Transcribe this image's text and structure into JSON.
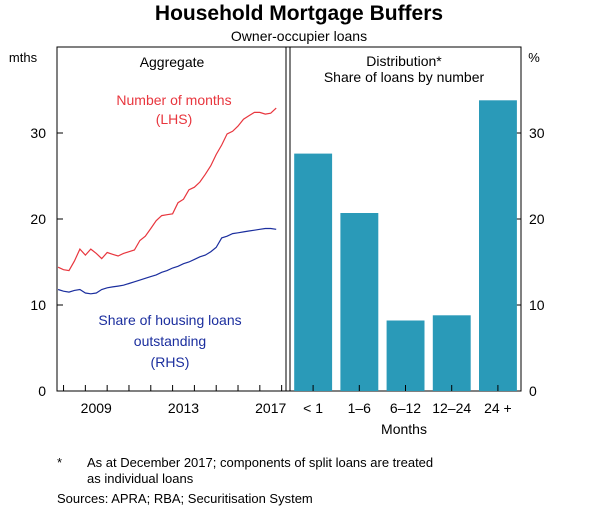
{
  "title": "Household Mortgage Buffers",
  "subtitle": "Owner-occupier loans",
  "chart_data": [
    {
      "type": "line",
      "panel_title": "Aggregate",
      "left_unit": "mths",
      "x_ticks": [
        "2009",
        "2013",
        "2017"
      ],
      "xlim": [
        2007.7,
        2018.2
      ],
      "ylim_left": [
        0,
        40
      ],
      "ylim_right": [
        0,
        40
      ],
      "y_ticks": [
        0,
        10,
        20,
        30
      ],
      "grid": false,
      "series": [
        {
          "name": "Number of months",
          "label_lines": [
            "Number of months",
            "(LHS)"
          ],
          "axis": "left",
          "color": "#e8363e",
          "x": [
            2007.75,
            2008.0,
            2008.25,
            2008.5,
            2008.75,
            2009.0,
            2009.25,
            2009.5,
            2009.75,
            2010.0,
            2010.25,
            2010.5,
            2010.75,
            2011.0,
            2011.25,
            2011.5,
            2011.75,
            2012.0,
            2012.25,
            2012.5,
            2012.75,
            2013.0,
            2013.25,
            2013.5,
            2013.75,
            2014.0,
            2014.25,
            2014.5,
            2014.75,
            2015.0,
            2015.25,
            2015.5,
            2015.75,
            2016.0,
            2016.25,
            2016.5,
            2016.75,
            2017.0,
            2017.25,
            2017.5,
            2017.75
          ],
          "values": [
            14.4,
            14.1,
            14.0,
            15.1,
            16.5,
            15.8,
            16.5,
            16.0,
            15.4,
            16.1,
            15.9,
            15.7,
            16.0,
            16.2,
            16.4,
            17.5,
            18.0,
            18.9,
            19.8,
            20.4,
            20.5,
            20.6,
            21.9,
            22.3,
            23.4,
            23.7,
            24.3,
            25.2,
            26.2,
            27.5,
            28.6,
            29.9,
            30.2,
            30.8,
            31.6,
            32.0,
            32.4,
            32.4,
            32.2,
            32.3,
            32.9
          ]
        },
        {
          "name": "Share of housing loans outstanding",
          "label_lines": [
            "Share of housing loans",
            "outstanding",
            "(RHS)"
          ],
          "axis": "right",
          "color": "#1b2e9e",
          "x": [
            2007.75,
            2008.0,
            2008.25,
            2008.5,
            2008.75,
            2009.0,
            2009.25,
            2009.5,
            2009.75,
            2010.0,
            2010.25,
            2010.5,
            2010.75,
            2011.0,
            2011.25,
            2011.5,
            2011.75,
            2012.0,
            2012.25,
            2012.5,
            2012.75,
            2013.0,
            2013.25,
            2013.5,
            2013.75,
            2014.0,
            2014.25,
            2014.5,
            2014.75,
            2015.0,
            2015.25,
            2015.5,
            2015.75,
            2016.0,
            2016.25,
            2016.5,
            2016.75,
            2017.0,
            2017.25,
            2017.5,
            2017.75
          ],
          "values": [
            11.8,
            11.6,
            11.5,
            11.7,
            11.8,
            11.4,
            11.3,
            11.4,
            11.8,
            12.0,
            12.1,
            12.2,
            12.3,
            12.5,
            12.7,
            12.9,
            13.1,
            13.3,
            13.5,
            13.8,
            14.0,
            14.3,
            14.5,
            14.8,
            15.0,
            15.3,
            15.6,
            15.8,
            16.2,
            16.7,
            17.8,
            18.0,
            18.3,
            18.4,
            18.5,
            18.6,
            18.7,
            18.8,
            18.9,
            18.9,
            18.8
          ]
        }
      ]
    },
    {
      "type": "bar",
      "panel_title": "Distribution*",
      "panel_subtitle": "Share of loans by number",
      "right_unit": "%",
      "xlabel": "Months",
      "categories": [
        "< 1",
        "1–6",
        "6–12",
        "12–24",
        "24 +"
      ],
      "values": [
        27.6,
        20.7,
        8.2,
        8.8,
        33.8
      ],
      "ylim": [
        0,
        40
      ],
      "y_ticks": [
        0,
        10,
        20,
        30
      ],
      "color": "#2a9ab8",
      "grid": false
    }
  ],
  "footnote": {
    "marker": "*",
    "lines": [
      "As at December 2017; components of split loans are treated",
      "as individual loans"
    ]
  },
  "sources": "Sources: APRA; RBA; Securitisation System"
}
